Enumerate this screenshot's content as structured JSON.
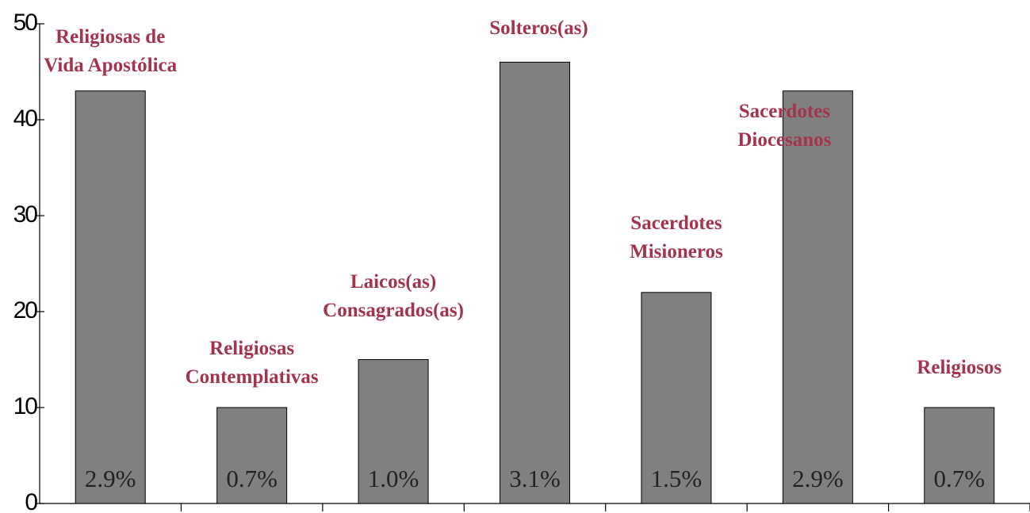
{
  "chart_data": {
    "type": "bar",
    "categories": [
      "Religiosas de\nVida Apostólica",
      "Religiosas\nContemplativas",
      "Laicos(as)\nConsagrados(as)",
      "Solteros(as)",
      "Sacerdotes\nMisioneros",
      "Sacerdotes\nDiocesanos",
      "Religiosos"
    ],
    "values": [
      43,
      10,
      15,
      46,
      22,
      43,
      10
    ],
    "percent_labels": [
      "2.9%",
      "0.7%",
      "1.0%",
      "3.1%",
      "1.5%",
      "2.9%",
      "0.7%"
    ],
    "color": "#808080",
    "ylim": [
      0,
      50
    ],
    "yticks": [
      0,
      10,
      20,
      30,
      40,
      50
    ],
    "grid": false
  }
}
